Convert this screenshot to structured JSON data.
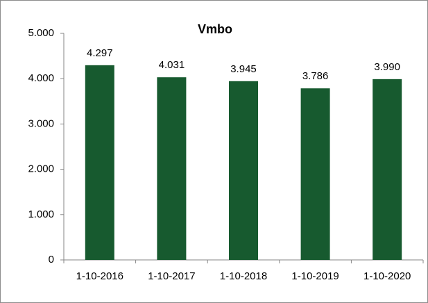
{
  "chart_data": {
    "type": "bar",
    "title": "Vmbo",
    "categories": [
      "1-10-2016",
      "1-10-2017",
      "1-10-2018",
      "1-10-2019",
      "1-10-2020"
    ],
    "values": [
      4297,
      4031,
      3945,
      3786,
      3990
    ],
    "value_labels": [
      "4.297",
      "4.031",
      "3.945",
      "3.786",
      "3.990"
    ],
    "color": "#175a2f",
    "ylim": [
      0,
      5000
    ],
    "yticks": [
      0,
      {
        "value": 1000,
        "label": "1.000"
      },
      {
        "value": 2000,
        "label": "2.000"
      },
      {
        "value": 3000,
        "label": "3.000"
      },
      {
        "value": 4000,
        "label": "4.000"
      },
      {
        "value": 5000,
        "label": "5.000"
      }
    ],
    "grid": false
  }
}
